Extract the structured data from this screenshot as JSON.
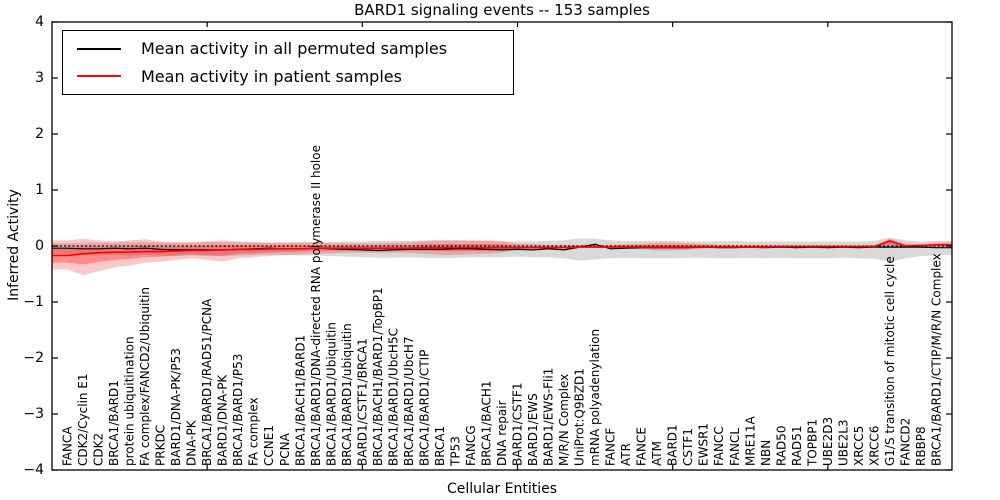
{
  "figure": {
    "background": "#ffffff"
  },
  "chart_data": {
    "type": "line",
    "title": "BARD1 signaling events -- 153 samples",
    "xlabel": "Cellular Entities",
    "ylabel": "Inferred Activity",
    "ylim": [
      -4,
      4
    ],
    "yticks": [
      4,
      3,
      2,
      1,
      0,
      -1,
      -2,
      -3,
      -4
    ],
    "ytick_labels": [
      "4",
      "3",
      "2",
      "1",
      "0",
      "−1",
      "−2",
      "−3",
      "−4"
    ],
    "xtick_positions": [
      10,
      20,
      30,
      40,
      50
    ],
    "grid": false,
    "legend_position": "upper left",
    "zero_line_style": "dotted",
    "categories": [
      "FANCA",
      "CDK2/Cyclin E1",
      "CDK2",
      "BRCA1/BARD1",
      "protein ubiquitination",
      "FA complex/FANCD2/Ubiquitin",
      "PRKDC",
      "BARD1/DNA-PK/P53",
      "DNA-PK",
      "BRCA1/BARD1/RAD51/PCNA",
      "BARD1/DNA-PK",
      "BRCA1/BARD1/P53",
      "FA complex",
      "CCNE1",
      "PCNA",
      "BRCA1/BACH1/BARD1",
      "BRCA1/BARD1/DNA-directed RNA polymerase II holoe",
      "BRCA1/BARD1/Ubiquitin",
      "BRCA1/BARD1/ubiquitin",
      "BARD1/CSTF1/BRCA1",
      "BRCA1/BACH1/BARD1/TopBP1",
      "BRCA1/BARD1/UbcH5C",
      "BRCA1/BARD1/UbcH7",
      "BRCA1/BARD1/CTIP",
      "BRCA1",
      "TP53",
      "FANCG",
      "BRCA1/BACH1",
      "DNA repair",
      "BARD1/CSTF1",
      "BARD1/EWS",
      "BARD1/EWS-Fli1",
      "M/R/N Complex",
      "UniProt:Q9BZD1",
      "mRNA polyadenylation",
      "FANCF",
      "ATR",
      "FANCE",
      "ATM",
      "BARD1",
      "CSTF1",
      "EWSR1",
      "FANCC",
      "FANCL",
      "MRE11A",
      "NBN",
      "RAD50",
      "RAD51",
      "TOPBP1",
      "UBE2D3",
      "UBE2L3",
      "XRCC5",
      "XRCC6",
      "G1/S transition of mitotic cell cycle",
      "FANCD2",
      "RBBP8",
      "BRCA1/BARD1/CTIP/M/R/N Complex"
    ],
    "series": [
      {
        "name": "Mean activity in all permuted samples",
        "color": "#000000",
        "values": [
          -0.04,
          -0.05,
          -0.05,
          -0.04,
          -0.05,
          -0.04,
          -0.06,
          -0.07,
          -0.07,
          -0.07,
          -0.07,
          -0.06,
          -0.05,
          -0.04,
          -0.05,
          -0.05,
          -0.04,
          -0.05,
          -0.06,
          -0.07,
          -0.08,
          -0.07,
          -0.06,
          -0.06,
          -0.06,
          -0.05,
          -0.05,
          -0.06,
          -0.07,
          -0.06,
          -0.07,
          -0.05,
          -0.07,
          -0.02,
          0.03,
          -0.05,
          -0.04,
          -0.03,
          -0.03,
          -0.03,
          -0.03,
          -0.02,
          -0.03,
          -0.03,
          -0.02,
          -0.03,
          -0.02,
          -0.03,
          -0.02,
          -0.03,
          -0.02,
          -0.03,
          -0.02,
          -0.02,
          -0.02,
          -0.02,
          -0.03
        ]
      },
      {
        "name": "Mean activity in patient samples",
        "color": "#ff0000",
        "values": [
          -0.17,
          -0.14,
          -0.12,
          -0.11,
          -0.11,
          -0.1,
          -0.1,
          -0.09,
          -0.08,
          -0.08,
          -0.07,
          -0.06,
          -0.06,
          -0.05,
          -0.05,
          -0.05,
          -0.04,
          -0.04,
          -0.04,
          -0.04,
          -0.04,
          -0.04,
          -0.04,
          -0.03,
          -0.03,
          -0.03,
          -0.03,
          -0.03,
          -0.03,
          -0.03,
          -0.03,
          -0.03,
          -0.03,
          -0.02,
          -0.02,
          -0.02,
          -0.02,
          -0.02,
          -0.02,
          -0.02,
          -0.02,
          -0.02,
          -0.02,
          -0.02,
          -0.02,
          -0.02,
          -0.01,
          -0.01,
          -0.01,
          -0.01,
          -0.01,
          -0.01,
          -0.01,
          0.09,
          0.0,
          0.01,
          0.02
        ]
      }
    ],
    "bands": [
      {
        "name": "permuted-sample-range",
        "color": "#888888",
        "opacity": 0.32,
        "upper": [
          0.05,
          0.06,
          0.06,
          0.06,
          0.07,
          0.07,
          0.06,
          0.06,
          0.06,
          0.07,
          0.07,
          0.07,
          0.06,
          0.06,
          0.06,
          0.07,
          0.07,
          0.07,
          0.08,
          0.08,
          0.09,
          0.09,
          0.09,
          0.1,
          0.1,
          0.1,
          0.09,
          0.09,
          0.08,
          0.08,
          0.08,
          0.09,
          0.1,
          0.14,
          0.13,
          0.1,
          0.09,
          0.09,
          0.09,
          0.09,
          0.08,
          0.08,
          0.08,
          0.09,
          0.08,
          0.08,
          0.08,
          0.08,
          0.08,
          0.08,
          0.08,
          0.08,
          0.09,
          0.15,
          0.1,
          0.08,
          0.09
        ],
        "lower": [
          -0.14,
          -0.16,
          -0.17,
          -0.16,
          -0.17,
          -0.16,
          -0.17,
          -0.18,
          -0.17,
          -0.18,
          -0.18,
          -0.17,
          -0.16,
          -0.15,
          -0.16,
          -0.17,
          -0.17,
          -0.18,
          -0.19,
          -0.2,
          -0.21,
          -0.21,
          -0.2,
          -0.21,
          -0.22,
          -0.21,
          -0.2,
          -0.2,
          -0.2,
          -0.19,
          -0.2,
          -0.2,
          -0.22,
          -0.26,
          -0.24,
          -0.22,
          -0.21,
          -0.22,
          -0.22,
          -0.22,
          -0.21,
          -0.21,
          -0.22,
          -0.22,
          -0.21,
          -0.22,
          -0.21,
          -0.22,
          -0.22,
          -0.22,
          -0.21,
          -0.22,
          -0.23,
          -0.28,
          -0.22,
          -0.18,
          -0.16
        ],
        "center_series": 0,
        "inner_layer": null
      },
      {
        "name": "patient-sample-range",
        "color": "#ff0000",
        "opacity": 0.22,
        "upper": [
          0.1,
          0.13,
          0.1,
          0.08,
          0.1,
          0.12,
          0.08,
          0.07,
          0.07,
          0.08,
          0.1,
          0.08,
          0.07,
          0.06,
          0.06,
          0.06,
          0.06,
          0.05,
          0.05,
          0.05,
          0.05,
          0.06,
          0.06,
          0.09,
          0.1,
          0.1,
          0.1,
          0.1,
          0.09,
          0.04,
          0.03,
          0.02,
          0.02,
          0.02,
          0.02,
          0.02,
          0.03,
          0.04,
          0.06,
          0.06,
          0.05,
          0.04,
          0.02,
          0.02,
          0.02,
          0.02,
          0.01,
          0.01,
          0.01,
          0.01,
          0.01,
          0.01,
          0.02,
          0.13,
          0.04,
          0.03,
          0.06
        ],
        "lower": [
          -0.42,
          -0.52,
          -0.45,
          -0.38,
          -0.35,
          -0.3,
          -0.28,
          -0.25,
          -0.22,
          -0.25,
          -0.28,
          -0.22,
          -0.2,
          -0.18,
          -0.16,
          -0.15,
          -0.14,
          -0.13,
          -0.12,
          -0.12,
          -0.12,
          -0.12,
          -0.12,
          -0.14,
          -0.16,
          -0.16,
          -0.15,
          -0.14,
          -0.12,
          -0.06,
          -0.05,
          -0.04,
          -0.03,
          -0.03,
          -0.03,
          -0.03,
          -0.04,
          -0.06,
          -0.08,
          -0.08,
          -0.07,
          -0.05,
          -0.03,
          -0.03,
          -0.02,
          -0.02,
          -0.02,
          -0.02,
          -0.02,
          -0.02,
          -0.02,
          -0.02,
          -0.02,
          -0.04,
          -0.03,
          -0.02,
          -0.02
        ],
        "center_series": 1,
        "inner_layer": {
          "scale": 0.5,
          "opacity": 0.3
        }
      }
    ]
  }
}
